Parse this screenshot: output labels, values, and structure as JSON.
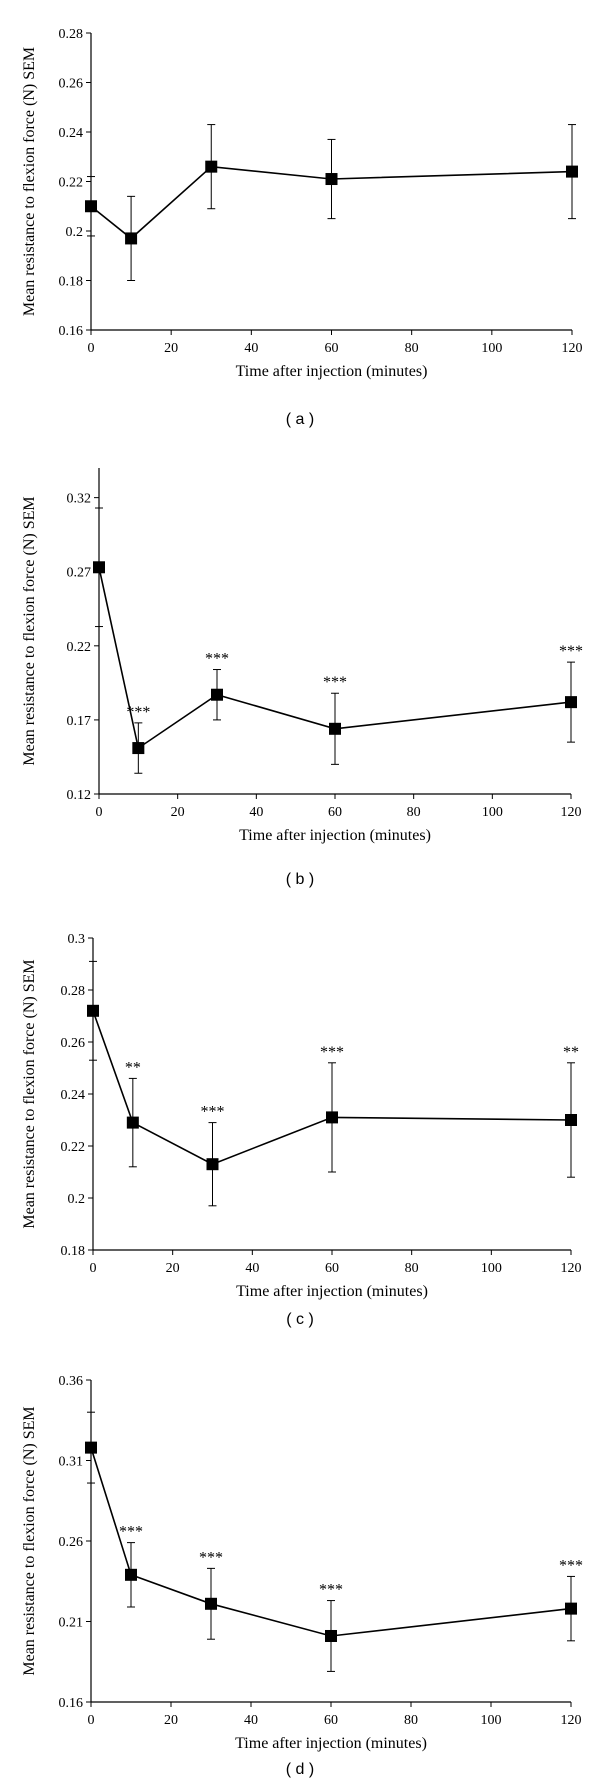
{
  "figure": {
    "panels": [
      {
        "label": "( a )"
      },
      {
        "label": "( b )"
      },
      {
        "label": "( c )"
      },
      {
        "label": "( d )"
      }
    ]
  },
  "chart_data": [
    {
      "type": "line",
      "xlabel": "Time after injection (minutes)",
      "ylabel": "Mean resistance to flexion force (N) SEM",
      "xlim": [
        0,
        120
      ],
      "ylim": [
        0.16,
        0.28
      ],
      "xticks": [
        "0",
        "20",
        "40",
        "60",
        "80",
        "100",
        "120"
      ],
      "yticks": [
        "0.16",
        "0.18",
        "0.2",
        "0.22",
        "0.24",
        "0.26",
        "0.28"
      ],
      "grid": false,
      "x": [
        0,
        10,
        30,
        60,
        120
      ],
      "y": [
        0.21,
        0.197,
        0.226,
        0.221,
        0.224
      ],
      "error": [
        0.012,
        0.017,
        0.017,
        0.016,
        0.019
      ],
      "annotations": [
        "",
        "",
        "",
        "",
        ""
      ]
    },
    {
      "type": "line",
      "xlabel": "Time after injection (minutes)",
      "ylabel": "Mean resistance to flexion force (N) SEM",
      "xlim": [
        0,
        120
      ],
      "ylim": [
        0.12,
        0.34
      ],
      "xticks": [
        "0",
        "20",
        "40",
        "60",
        "80",
        "100",
        "120"
      ],
      "yticks": [
        "0.12",
        "0.17",
        "0.22",
        "0.27",
        "0.32"
      ],
      "ytick_values": [
        0.12,
        0.17,
        0.22,
        0.27,
        0.32
      ],
      "grid": false,
      "x": [
        0,
        10,
        30,
        60,
        120
      ],
      "y": [
        0.273,
        0.151,
        0.187,
        0.164,
        0.182
      ],
      "error": [
        0.04,
        0.017,
        0.017,
        0.024,
        0.027
      ],
      "annotations": [
        "",
        "***",
        "***",
        "***",
        "***"
      ]
    },
    {
      "type": "line",
      "xlabel": "Time after injection (minutes)",
      "ylabel": "Mean resistance to flexion force (N) SEM",
      "xlim": [
        0,
        120
      ],
      "ylim": [
        0.18,
        0.3
      ],
      "xticks": [
        "0",
        "20",
        "40",
        "60",
        "80",
        "100",
        "120"
      ],
      "yticks": [
        "0.18",
        "0.2",
        "0.22",
        "0.24",
        "0.26",
        "0.28",
        "0.3"
      ],
      "grid": false,
      "x": [
        0,
        10,
        30,
        60,
        120
      ],
      "y": [
        0.272,
        0.229,
        0.213,
        0.231,
        0.23
      ],
      "error": [
        0.019,
        0.017,
        0.016,
        0.021,
        0.022
      ],
      "annotations": [
        "",
        "**",
        "***",
        "***",
        "**"
      ]
    },
    {
      "type": "line",
      "xlabel": "Time after injection (minutes)",
      "ylabel": "Mean resistance to flexion force (N) SEM",
      "xlim": [
        0,
        120
      ],
      "ylim": [
        0.16,
        0.36
      ],
      "xticks": [
        "0",
        "20",
        "40",
        "60",
        "80",
        "100",
        "120"
      ],
      "yticks": [
        "0.16",
        "0.21",
        "0.26",
        "0.31",
        "0.36"
      ],
      "ytick_values": [
        0.16,
        0.21,
        0.26,
        0.31,
        0.36
      ],
      "grid": false,
      "x": [
        0,
        10,
        30,
        60,
        120
      ],
      "y": [
        0.318,
        0.239,
        0.221,
        0.201,
        0.218
      ],
      "error": [
        0.022,
        0.02,
        0.022,
        0.022,
        0.02
      ],
      "annotations": [
        "",
        "***",
        "***",
        "***",
        "***"
      ]
    }
  ]
}
